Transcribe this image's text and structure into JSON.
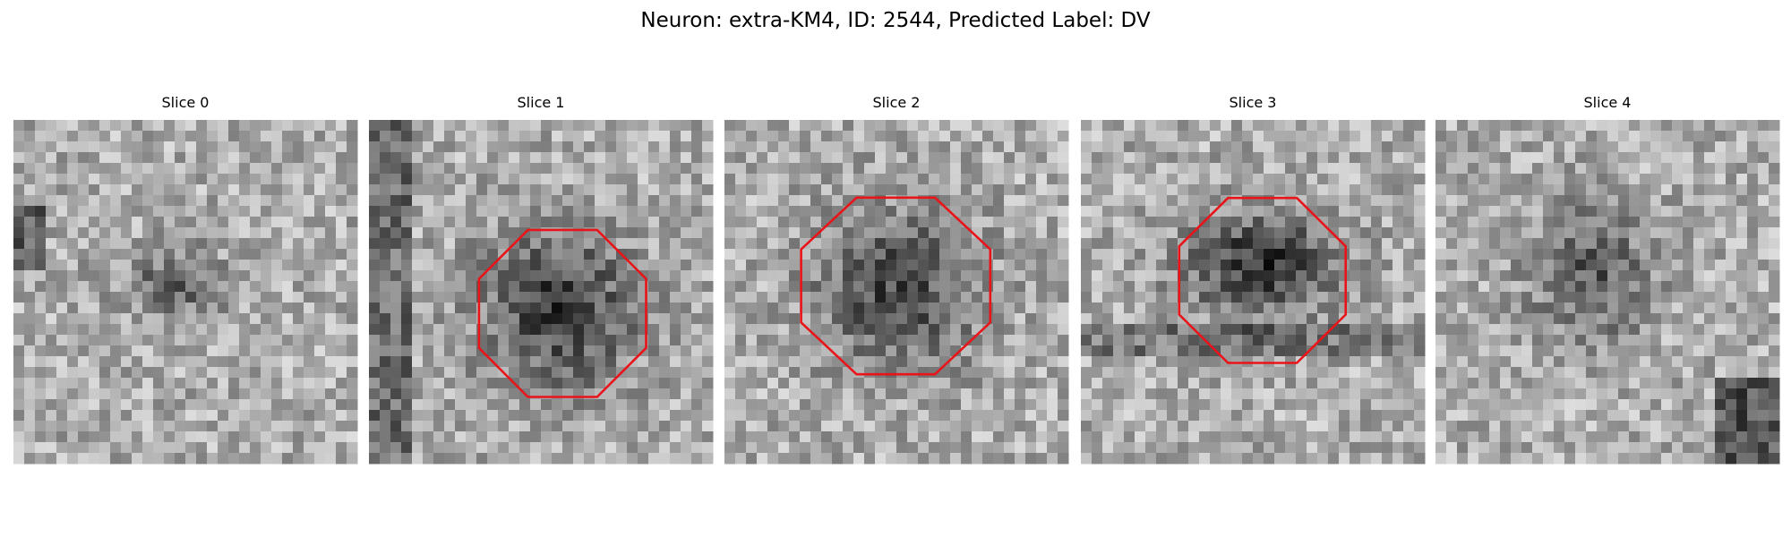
{
  "title": "Neuron: extra-KM4, ID: 2544, Predicted Label: DV",
  "panels": [
    {
      "title": "Slice 0"
    },
    {
      "title": "Slice 1"
    },
    {
      "title": "Slice 2"
    },
    {
      "title": "Slice 3"
    },
    {
      "title": "Slice 4"
    }
  ]
}
